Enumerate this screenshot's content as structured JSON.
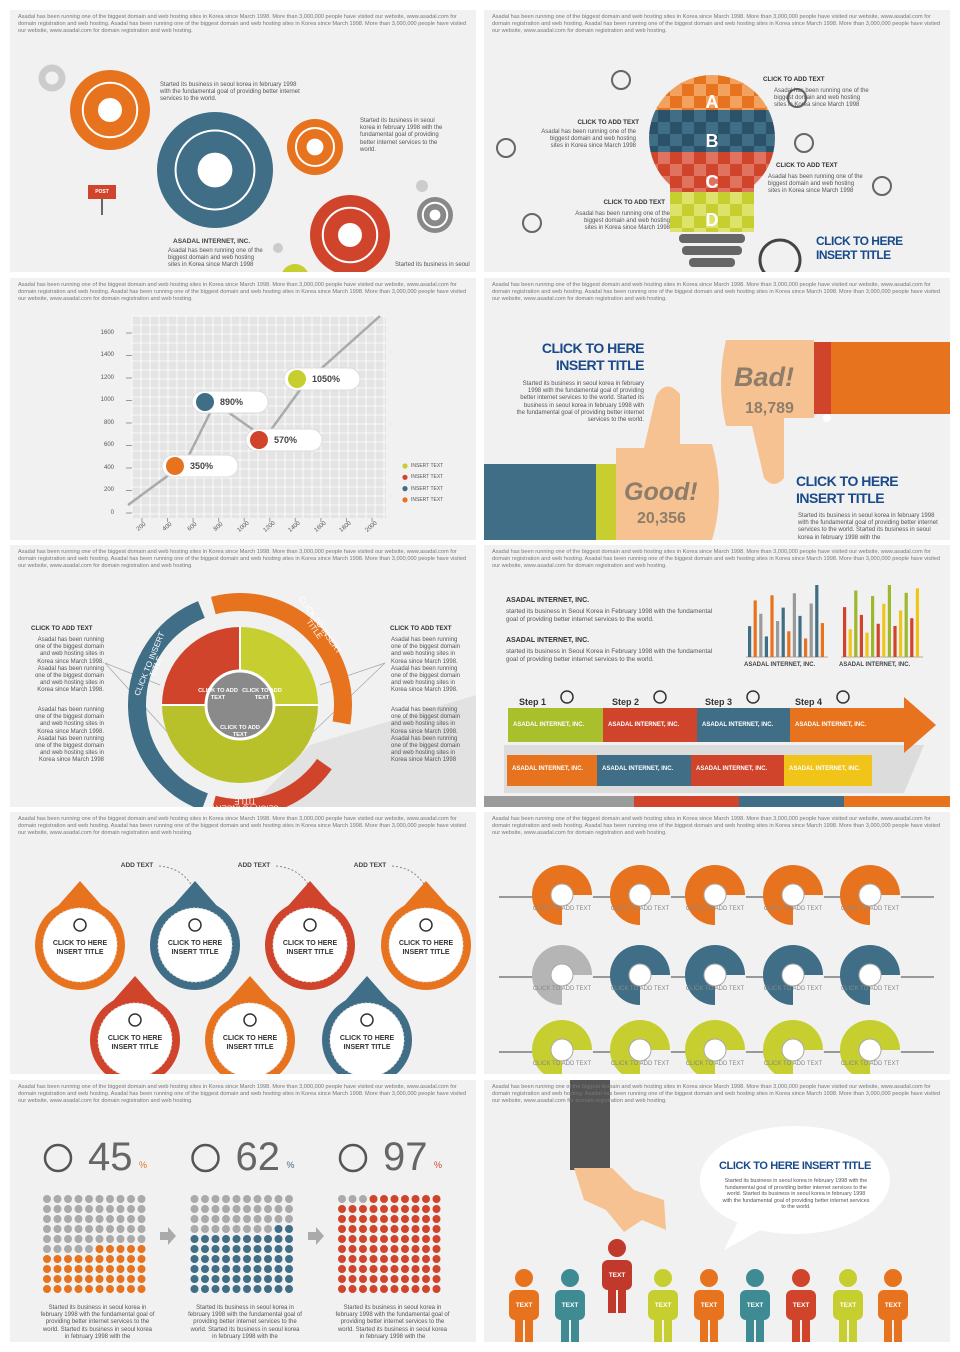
{
  "slides": [
    {
      "header": "Asadal has been running one of the biggest domain and web hosting sites in Korea since March 1998. More than 3,000,000 people have visited our website, www.asadal.com for domain registration and web hosting. Asadal has been running one of the biggest domain and web hosting sites in Korea since March 1998. More than 3,000,000 people have visited our website, www.asadal.com for domain registration and web hosting.",
      "notes": [
        "Started its business in seoul korea in february 1998 with the fundamental goal of providing better internet services to the world.",
        "Started its business in seoul korea in february 1998 with the fundamental goal of providing better internet services to the world."
      ],
      "company": "ASADAL INTERNET, INC.",
      "company_text": "Asadal has been running one of the biggest domain and web hosting sites in Korea since March 1998",
      "footer_text": "Started its business in seoul",
      "sign": "POST"
    },
    {
      "header": "Asadal has been running one of the biggest domain and web hosting sites in Korea since March 1998. More than 3,000,000 people have visited our website, www.asadal.com for domain registration and web hosting. Asadal has been running one of the biggest domain and web hosting sites in Korea since March 1998. More than 3,000,000 people have visited our website, www.asadal.com for domain registration and web hosting.",
      "letters": [
        "A",
        "B",
        "C",
        "D"
      ],
      "items": [
        {
          "title": "CLICK TO ADD TEXT",
          "text": "Asadal has been running one of the biggest domain and web hosting sites in Korea since March 1998"
        },
        {
          "title": "CLICK TO ADD TEXT",
          "text": "Asadal has been running one of the biggest domain and web hosting sites in Korea since March 1998"
        },
        {
          "title": "CLICK TO ADD TEXT",
          "text": "Asadal has been running one of the biggest domain and web hosting sites in Korea since March 1998"
        },
        {
          "title": "CLICK TO ADD TEXT",
          "text": "Asadal has been running one of the biggest domain and web hosting sites in Korea since March 1998"
        }
      ],
      "title": "CLICK TO HERE INSERT TITLE"
    },
    {
      "header": "Asadal has been running one of the biggest domain and web hosting sites in Korea since March 1998. More than 3,000,000 people have visited our website, www.asadal.com for domain registration and web hosting. Asadal has been running one of the biggest domain and web hosting sites in Korea since March 1998. More than 3,000,000 people have visited our website, www.asadal.com for domain registration and web hosting.",
      "yticks": [
        0,
        200,
        400,
        600,
        800,
        1000,
        1200,
        1400,
        1600
      ],
      "xticks": [
        200,
        400,
        600,
        800,
        1000,
        1200,
        1400,
        1600,
        1800,
        2000
      ],
      "callouts": [
        "350%",
        "890%",
        "570%",
        "1050%"
      ],
      "legend": [
        "INSERT TEXT",
        "INSERT TEXT",
        "INSERT TEXT",
        "INSERT TEXT"
      ]
    },
    {
      "header": "Asadal has been running one of the biggest domain and web hosting sites in Korea since March 1998. More than 3,000,000 people have visited our website, www.asadal.com for domain registration and web hosting. Asadal has been running one of the biggest domain and web hosting sites in Korea since March 1998. More than 3,000,000 people have visited our website, www.asadal.com for domain registration and web hosting.",
      "titles": [
        "CLICK TO HERE INSERT TITLE",
        "CLICK TO HERE INSERT TITLE"
      ],
      "texts": [
        "Started its business in seoul korea in february 1998 with the fundamental goal of providing better internet services to the world. Started its business in seoul korea in february 1998 with the fundamental goal of providing better internet services to the world.",
        "Started its business in seoul korea in february 1998 with the fundamental goal of providing better internet services to the world. Started its business in seoul korea in february 1998 with the"
      ],
      "bad": {
        "label": "Bad!",
        "value": "18,789"
      },
      "good": {
        "label": "Good!",
        "value": "20,356"
      }
    },
    {
      "header": "Asadal has been running one of the biggest domain and web hosting sites in Korea since March 1998. More than 3,000,000 people have visited our website, www.asadal.com for domain registration and web hosting. Asadal has been running one of the biggest domain and web hosting sites in Korea since March 1998. More than 3,000,000 people have visited our website, www.asadal.com for domain registration and web hosting.",
      "side": [
        {
          "title": "CLICK TO ADD TEXT",
          "texts": [
            "Asadal has been running one of the biggest domain and web hosting sites in Korea since March 1998. Asadal has been running one of the biggest domain and web hosting sites in Korea since March 1998.",
            "Asadal has been running one of the biggest domain and web hosting sites in Korea since March 1998. Asadal has been running one of the biggest domain and web hosting sites in Korea since March 1998"
          ]
        },
        {
          "title": "CLICK TO ADD TEXT",
          "texts": [
            "Asadal has been running one of the biggest domain and web hosting sites in Korea since March 1998. Asadal has been running one of the biggest domain and web hosting sites in Korea since March 1998.",
            "Asadal has been running one of the biggest domain and web hosting sites in Korea since March 1998. Asadal has been running one of the biggest domain and web hosting sites in Korea since March 1998"
          ]
        }
      ],
      "arc_titles": [
        "CLICK TO INSERT TITLE",
        "CLICK TO INSERT TITLE",
        "CLICK TO INSERT TITLE"
      ],
      "center": [
        "CLICK TO ADD TEXT",
        "CLICK TO ADD TEXT",
        "CLICK TO ADD TEXT"
      ]
    },
    {
      "header": "Asadal has been running one of the biggest domain and web hosting sites in Korea since March 1998. More than 3,000,000 people have visited our website, www.asadal.com for domain registration and web hosting. Asadal has been running one of the biggest domain and web hosting sites in Korea since March 1998. More than 3,000,000 people have visited our website, www.asadal.com for domain registration and web hosting.",
      "blocks": [
        {
          "title": "ASADAL INTERNET, INC.",
          "text": "started its business in Seoul Korea in February 1998 with the fundamental goal of providing better internet services to the world."
        },
        {
          "title": "ASADAL INTERNET, INC.",
          "text": "started its business in Seoul Korea in February 1998 with the fundamental goal of providing better internet services to the world."
        }
      ],
      "charts": [
        {
          "caption": "ASADAL INTERNET, INC.",
          "values": [
            30,
            55,
            42,
            20,
            60,
            35,
            48,
            25,
            62,
            40,
            18,
            52,
            70,
            33
          ]
        },
        {
          "caption": "ASADAL INTERNET, INC.",
          "values": [
            45,
            25,
            60,
            38,
            22,
            55,
            30,
            48,
            65,
            28,
            42,
            58,
            35,
            62
          ]
        }
      ],
      "steps": [
        "Step 1",
        "Step 2",
        "Step 3",
        "Step 4"
      ],
      "boxes": [
        "ASADAL INTERNET, INC.",
        "ASADAL INTERNET, INC.",
        "ASADAL INTERNET, INC.",
        "ASADAL INTERNET, INC.",
        "ASADAL INTERNET, INC.",
        "ASADAL INTERNET, INC.",
        "ASADAL INTERNET, INC.",
        "ASADAL INTERNET, INC."
      ]
    },
    {
      "header": "Asadal has been running one of the biggest domain and web hosting sites in Korea since March 1998. More than 3,000,000 people have visited our website, www.asadal.com for domain registration and web hosting. Asadal has been running one of the biggest domain and web hosting sites in Korea since March 1998. More than 3,000,000 people have visited our website, www.asadal.com for domain registration and web hosting.",
      "add": [
        "ADD TEXT",
        "ADD TEXT",
        "ADD TEXT"
      ],
      "titles": [
        "CLICK TO HERE INSERT TITLE",
        "CLICK TO HERE INSERT TITLE",
        "CLICK TO HERE INSERT TITLE",
        "CLICK TO HERE INSERT TITLE",
        "CLICK TO HERE INSERT TITLE",
        "CLICK TO HERE INSERT TITLE",
        "CLICK TO HERE INSERT TITLE"
      ]
    },
    {
      "header": "Asadal has been running one of the biggest domain and web hosting sites in Korea since March 1998. More than 3,000,000 people have visited our website, www.asadal.com for domain registration and web hosting. Asadal has been running one of the biggest domain and web hosting sites in Korea since March 1998. More than 3,000,000 people have visited our website, www.asadal.com for domain registration and web hosting.",
      "labels": [
        "CLICK TO ADD TEXT",
        "CLICK TO ADD TEXT",
        "CLICK TO ADD TEXT",
        "CLICK TO ADD TEXT",
        "CLICK TO ADD TEXT",
        "CLICK TO ADD TEXT",
        "CLICK TO ADD TEXT",
        "CLICK TO ADD TEXT",
        "CLICK TO ADD TEXT",
        "CLICK TO ADD TEXT",
        "CLICK TO ADD TEXT",
        "CLICK TO ADD TEXT",
        "CLICK TO ADD TEXT",
        "CLICK TO ADD TEXT",
        "CLICK TO ADD TEXT"
      ]
    },
    {
      "header": "Asadal has been running one of the biggest domain and web hosting sites in Korea since March 1998. More than 3,000,000 people have visited our website, www.asadal.com for domain registration and web hosting. Asadal has been running one of the biggest domain and web hosting sites in Korea since March 1998. More than 3,000,000 people have visited our website, www.asadal.com for domain registration and web hosting.",
      "stats": [
        {
          "value": 45,
          "unit": "%",
          "text": "Started its business in seoul korea in february 1998 with the fundamental goal of providing better internet services to the world. Started its business in seoul korea in february 1998 with the"
        },
        {
          "value": 62,
          "unit": "%",
          "text": "Started its business in seoul korea in february 1998 with the fundamental goal of providing better internet services to the world. Started its business in seoul korea in february 1998 with the"
        },
        {
          "value": 97,
          "unit": "%",
          "text": "Started its business in seoul korea in february 1998 with the fundamental goal of providing better internet services to the world. Started its business in seoul korea in february 1998 with the"
        }
      ]
    },
    {
      "header": "Asadal has been running one of the biggest domain and web hosting sites in Korea since March 1998. More than 3,000,000 people have visited our website, www.asadal.com for domain registration and web hosting. Asadal has been running one of the biggest domain and web hosting sites in Korea since March 1998. More than 3,000,000 people have visited our website, www.asadal.com for domain registration and web hosting.",
      "title": "CLICK TO HERE INSERT TITLE",
      "text": "Started its business in seoul korea in february 1998 with the fundamental goal of providing better internet services to the world. Started its business in seoul korea in february 1998 with the fundamental goal of providing better internet services to the world.",
      "people": [
        "TEXT",
        "TEXT",
        "TEXT",
        "TEXT",
        "TEXT",
        "TEXT",
        "TEXT",
        "TEXT",
        "TEXT"
      ]
    }
  ]
}
